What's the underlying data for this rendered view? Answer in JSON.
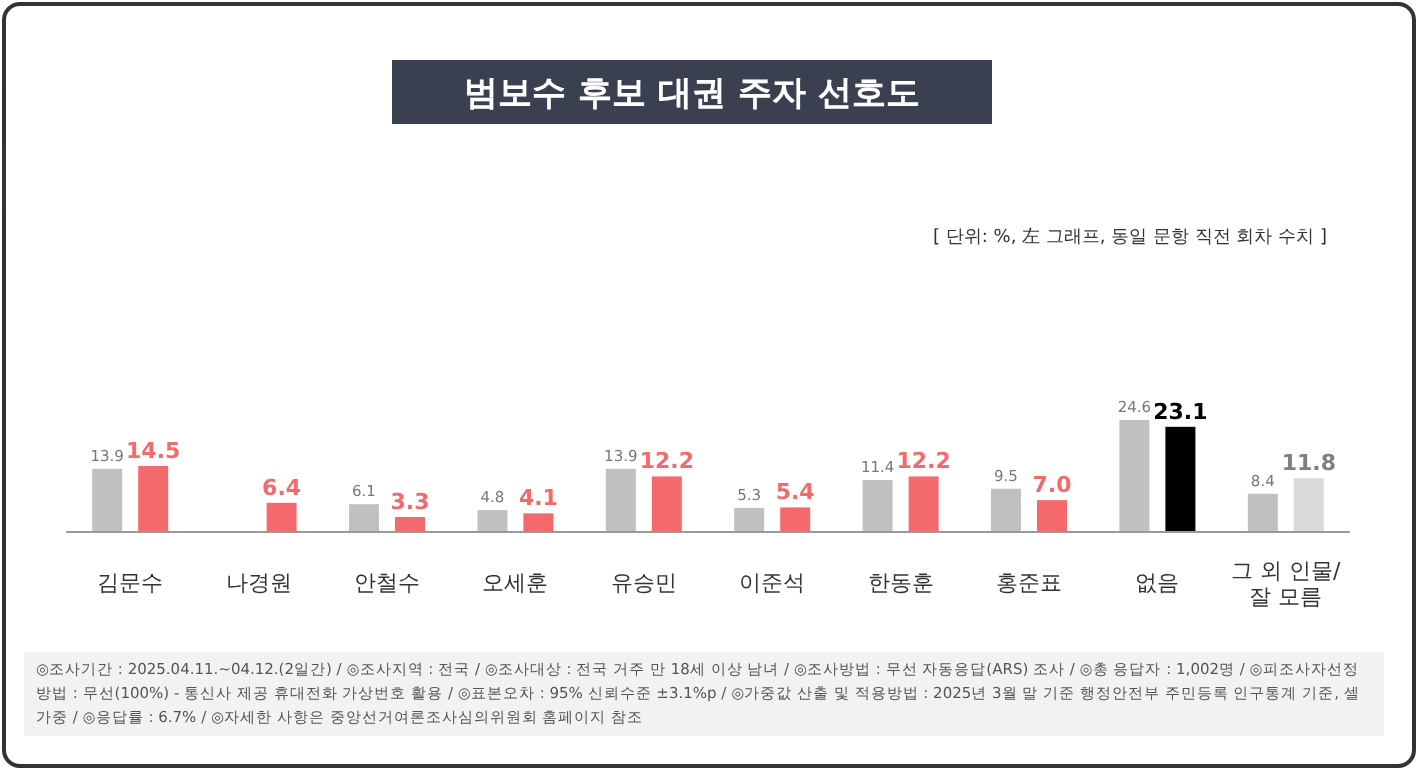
{
  "chart_data": {
    "type": "bar",
    "title": "범보수 후보 대권 주자 선호도",
    "subtitle": "[ 단위: %, 左 그래프, 동일 문항 직전 회차 수치 ]",
    "categories": [
      "김문수",
      "나경원",
      "안철수",
      "오세훈",
      "유승민",
      "이준석",
      "한동훈",
      "홍준표",
      "없음",
      "그 외 인물/ 잘 모름"
    ],
    "series": [
      {
        "color": "#c0c0c0",
        "values": [
          13.9,
          null,
          6.1,
          4.8,
          13.9,
          5.3,
          11.4,
          9.5,
          24.6,
          8.4
        ],
        "value_labels": [
          "13.9",
          null,
          "6.1",
          "4.8",
          "13.9",
          "5.3",
          "11.4",
          "9.5",
          "24.6",
          "8.4"
        ]
      },
      {
        "value_labels": [
          "14.5",
          "6.4",
          "3.3",
          "4.1",
          "12.2",
          "5.4",
          "12.2",
          "7.0",
          "23.1",
          "11.8"
        ],
        "colors": [
          "#f4696b",
          "#f4696b",
          "#f4696b",
          "#f4696b",
          "#f4696b",
          "#f4696b",
          "#f4696b",
          "#f4696b",
          "#000000",
          "#d9d9d9"
        ],
        "values": [
          14.5,
          6.4,
          3.3,
          4.1,
          12.2,
          5.4,
          12.2,
          7.0,
          23.1,
          11.8
        ]
      }
    ],
    "annotations": [
      "◎조사기간 : 2025.04.11.~04.12.(2일간) / ◎조사지역 : 전국 / ◎조사대상 : 전국 거주 만 18세 이상 남녀 / ◎조사방법 : 무선 자동응답(ARS) 조사 / ◎총 응답자 : 1,002명 / ◎피조사자선정방법 : 무선(100%) - 통신사 제공 휴대전화 가상번호 활용 / ◎표본오차 : 95% 신뢰수준 ±3.1%p / ◎가중값 산출 및 적용방법 : 2025년 3월 말 기준 행정안전부 주민등록 인구통계 기준, 셀가중 / ◎응답률 : 6.7% / ◎자세한 사항은 중앙선거여론조사심의위원회 홈페이지 참조"
    ]
  }
}
